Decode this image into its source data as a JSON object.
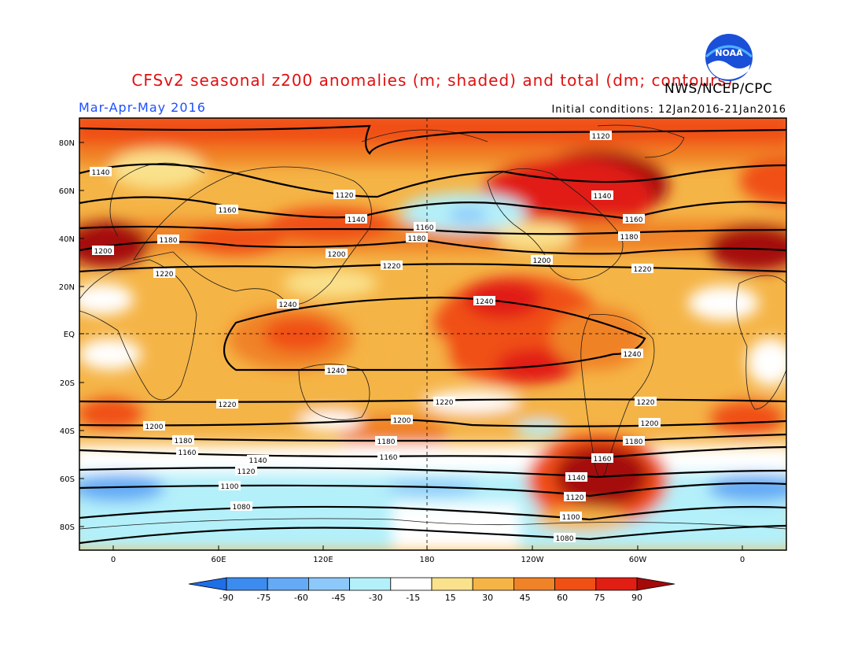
{
  "header": {
    "title": "CFSv2 seasonal z200 anomalies (m; shaded) and total (dm; contours)",
    "agency": "NWS/NCEP/CPC",
    "period": "Mar-Apr-May 2016",
    "initial_conditions": "Initial conditions: 12Jan2016-21Jan2016",
    "logo_text": "NOAA"
  },
  "map": {
    "lat_labels": [
      "80N",
      "60N",
      "40N",
      "20N",
      "EQ",
      "20S",
      "40S",
      "60S",
      "80S"
    ],
    "lon_labels": [
      "0",
      "60E",
      "120E",
      "180",
      "120W",
      "60W",
      "0"
    ],
    "contour_labels": [
      "1080",
      "1100",
      "1120",
      "1140",
      "1160",
      "1180",
      "1200",
      "1220",
      "1240"
    ]
  },
  "colorbar": {
    "ticks": [
      "-90",
      "-75",
      "-60",
      "-45",
      "-30",
      "-15",
      "15",
      "30",
      "45",
      "60",
      "75",
      "90"
    ],
    "colors": [
      "#1e6ee8",
      "#3c8cf0",
      "#64aaf5",
      "#8cc8fa",
      "#b4f0fa",
      "#ffffff",
      "#fae18c",
      "#f5b446",
      "#f08228",
      "#f05014",
      "#e11e14",
      "#a50a0a"
    ]
  }
}
